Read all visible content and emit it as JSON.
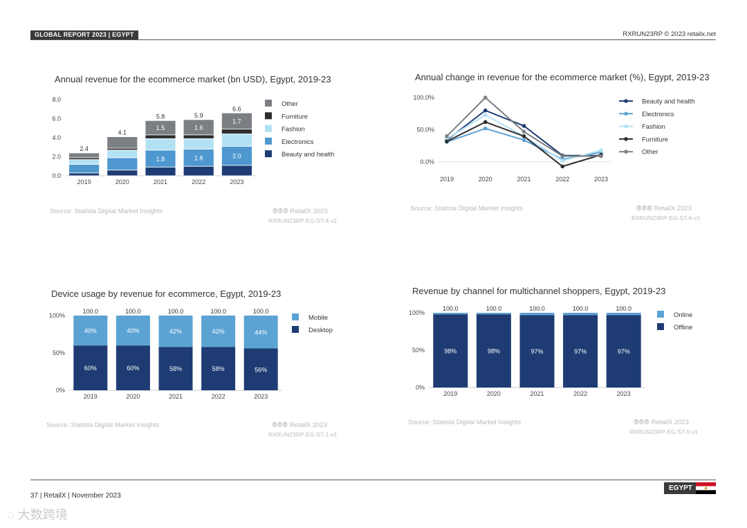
{
  "header": {
    "report_label": "GLOBAL REPORT 2023 | EGYPT",
    "code": "RXRUN23RP © 2023 retailx.net"
  },
  "footer": {
    "page_text": "37 | RetailX | November 2023",
    "country_tag": "EGYPT",
    "watermark": "大数跨境"
  },
  "colors": {
    "beauty": "#1e3c73",
    "electronics": "#4f97cf",
    "fashion": "#b3e1f4",
    "furniture": "#2e2e2e",
    "other": "#7b7f83",
    "mobile": "#5ba3d3",
    "desktop": "#1e3c73",
    "online": "#5ba3d3",
    "offline": "#1e3c73"
  },
  "panels": [
    {
      "source": "Source: Statista Digital Market Insights",
      "brand": "RetailX 2023",
      "code": "RXRUN23RP-EG-ST-4-v1"
    },
    {
      "source": "Source: Statista Digital Market Insights",
      "brand": "RetailX 2023",
      "code": "RXRUN23RP-EG-ST-6-v1"
    },
    {
      "source": "Source: Statista Digital Market Insights",
      "brand": "RetailX 2023",
      "code": "RXRUN23RP-EG-ST-1-v1"
    },
    {
      "source": "Source: Statista Digital Market Insights",
      "brand": "RetailX 2023",
      "code": "RXRUN23RP-EG-ST-5-v1"
    }
  ],
  "chart_data": [
    {
      "id": "revenue",
      "type": "bar",
      "stacked": true,
      "title": "Annual revenue for the ecommerce market (bn USD), Egypt, 2019-23",
      "categories": [
        "2019",
        "2020",
        "2021",
        "2022",
        "2023"
      ],
      "ylim": [
        0,
        8
      ],
      "yticks": [
        "0.0",
        "2.0",
        "4.0",
        "6.0",
        "8.0"
      ],
      "totals": [
        "2.4",
        "4.1",
        "5.8",
        "5.9",
        "6.6"
      ],
      "series": [
        {
          "name": "Beauty and health",
          "key": "beauty",
          "values": [
            0.3,
            0.6,
            0.9,
            1.0,
            1.1
          ]
        },
        {
          "name": "Electronics",
          "key": "electronics",
          "values": [
            0.9,
            1.3,
            1.8,
            1.8,
            2.0
          ],
          "labels": [
            "",
            "",
            "1.8",
            "1.8",
            "2.0"
          ]
        },
        {
          "name": "Fashion",
          "key": "fashion",
          "values": [
            0.5,
            0.8,
            1.2,
            1.1,
            1.3
          ]
        },
        {
          "name": "Furniture",
          "key": "furniture",
          "values": [
            0.2,
            0.2,
            0.4,
            0.4,
            0.5
          ]
        },
        {
          "name": "Other",
          "key": "other",
          "values": [
            0.5,
            1.2,
            1.5,
            1.6,
            1.7
          ],
          "labels": [
            "",
            "",
            "1.5",
            "1.6",
            "1.7"
          ]
        }
      ],
      "legend_order": [
        "Other",
        "Furniture",
        "Fashion",
        "Electronics",
        "Beauty and health"
      ]
    },
    {
      "id": "change",
      "type": "line",
      "title": "Annual change in revenue for the ecommerce market (%), Egypt, 2019-23",
      "x": [
        "2019",
        "2020",
        "2021",
        "2022",
        "2023"
      ],
      "ylim": [
        -10,
        100
      ],
      "yticks": [
        {
          "v": 0,
          "label": "0.0%"
        },
        {
          "v": 50,
          "label": "50.0%"
        },
        {
          "v": 100,
          "label": "100.0%"
        }
      ],
      "series": [
        {
          "name": "Beauty and health",
          "color": "#1e3c73",
          "values": [
            34,
            80,
            56,
            10,
            10
          ]
        },
        {
          "name": "Electronics",
          "color": "#5ba3d3",
          "values": [
            31,
            52,
            34,
            4,
            15
          ]
        },
        {
          "name": "Fashion",
          "color": "#b3e1f4",
          "values": [
            36,
            73,
            40,
            2,
            18
          ]
        },
        {
          "name": "Furniture",
          "color": "#2e2e2e",
          "values": [
            32,
            62,
            40,
            -7,
            11
          ]
        },
        {
          "name": "Other",
          "color": "#7b7f83",
          "values": [
            40,
            100,
            47,
            9,
            9
          ]
        }
      ]
    },
    {
      "id": "device",
      "type": "bar",
      "stacked": true,
      "title": "Device usage by revenue for ecommerce, Egypt, 2019-23",
      "categories": [
        "2019",
        "2020",
        "2021",
        "2022",
        "2023"
      ],
      "ylim": [
        0,
        100
      ],
      "yticks": [
        "0%",
        "50%",
        "100%"
      ],
      "totals": [
        "100.0",
        "100.0",
        "100.0",
        "100.0",
        "100.0"
      ],
      "series": [
        {
          "name": "Desktop",
          "key": "desktop",
          "values": [
            60,
            60,
            58,
            58,
            56
          ],
          "labels": [
            "60%",
            "60%",
            "58%",
            "58%",
            "56%"
          ]
        },
        {
          "name": "Mobile",
          "key": "mobile",
          "values": [
            40,
            40,
            42,
            42,
            44
          ],
          "labels": [
            "40%",
            "40%",
            "42%",
            "42%",
            "44%"
          ]
        }
      ],
      "legend_order": [
        "Mobile",
        "Desktop"
      ]
    },
    {
      "id": "channel",
      "type": "bar",
      "stacked": true,
      "title": "Revenue by channel for multichannel shoppers, Egypt, 2019-23",
      "categories": [
        "2019",
        "2020",
        "2021",
        "2022",
        "2023"
      ],
      "ylim": [
        0,
        100
      ],
      "yticks": [
        "0%",
        "50%",
        "100%"
      ],
      "totals": [
        "100.0",
        "100.0",
        "100.0",
        "100.0",
        "100.0"
      ],
      "series": [
        {
          "name": "Offline",
          "key": "offline",
          "values": [
            98,
            98,
            97,
            97,
            97
          ],
          "labels": [
            "98%",
            "98%",
            "97%",
            "97%",
            "97%"
          ]
        },
        {
          "name": "Online",
          "key": "online",
          "values": [
            2,
            2,
            3,
            3,
            3
          ]
        }
      ],
      "legend_order": [
        "Online",
        "Offline"
      ]
    }
  ]
}
